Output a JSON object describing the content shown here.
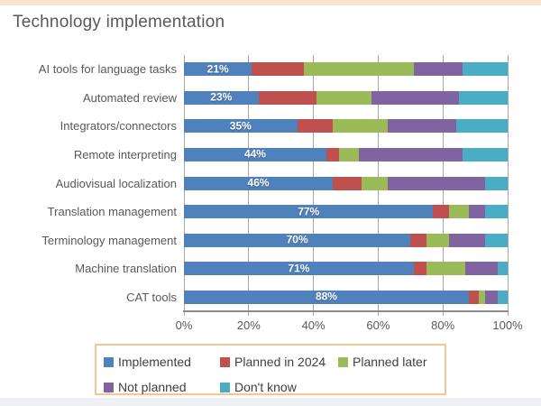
{
  "title": "Technology implementation",
  "colors": {
    "top_strip": "#FAE3D1",
    "legend_border": "#F5C593",
    "bottom_strip": "#EEF0F4",
    "gridline": "#A6A6A6",
    "axis_text": "#595959",
    "title_text": "#595959"
  },
  "chart_data": {
    "type": "bar",
    "stacked": true,
    "orientation": "horizontal",
    "title": "Technology implementation",
    "categories": [
      "AI tools for language tasks",
      "Automated review",
      "Integrators/connectors",
      "Remote interpreting",
      "Audiovisual localization",
      "Translation management",
      "Terminology management",
      "Machine translation",
      "CAT tools"
    ],
    "series": [
      {
        "name": "Implemented",
        "color": "#4F81BD",
        "values": [
          21,
          23,
          35,
          44,
          46,
          77,
          70,
          71,
          88
        ]
      },
      {
        "name": "Planned in 2024",
        "color": "#C0504D",
        "values": [
          16,
          18,
          11,
          4,
          9,
          5,
          5,
          4,
          3
        ]
      },
      {
        "name": "Planned later",
        "color": "#9BBB59",
        "values": [
          34,
          17,
          17,
          6,
          8,
          6,
          7,
          12,
          2
        ]
      },
      {
        "name": "Not planned",
        "color": "#8064A2",
        "values": [
          15,
          27,
          21,
          32,
          30,
          5,
          11,
          10,
          4
        ]
      },
      {
        "name": "Don't know",
        "color": "#4BACC6",
        "values": [
          14,
          15,
          16,
          14,
          7,
          7,
          7,
          3,
          3
        ]
      }
    ],
    "data_labels": [
      "21%",
      "23%",
      "35%",
      "44%",
      "46%",
      "77%",
      "70%",
      "71%",
      "88%"
    ],
    "x_ticks": [
      "0%",
      "20%",
      "40%",
      "60%",
      "80%",
      "100%"
    ],
    "xlim": [
      0,
      100
    ],
    "grid": "vertical",
    "legend_position": "bottom"
  }
}
